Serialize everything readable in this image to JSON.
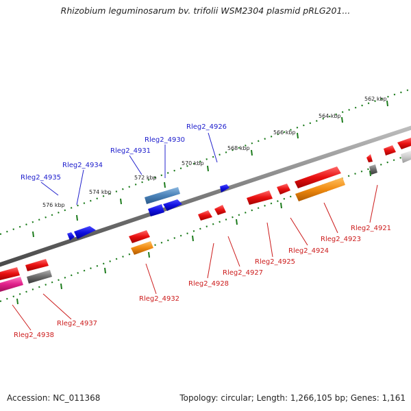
{
  "title": "Rhizobium leguminosarum bv. trifolii WSM2304 plasmid pRLG201...",
  "footer": {
    "accession": "Accession: NC_011368",
    "summary": "Topology: circular; Length: 1,266,105 bp; Genes: 1,161"
  },
  "kbp_labels": [
    "562 kbp",
    "564 kbp",
    "566 kbp",
    "568 kbp",
    "570 kbp",
    "572 kbp",
    "574 kbp",
    "576 kbp"
  ],
  "top_gene_labels": [
    "Rleg2_4926",
    "Rleg2_4930",
    "Rleg2_4931",
    "Rleg2_4934",
    "Rleg2_4935"
  ],
  "bottom_gene_labels": [
    "Rleg2_4921",
    "Rleg2_4923",
    "Rleg2_4924",
    "Rleg2_4925",
    "Rleg2_4927",
    "Rleg2_4928",
    "Rleg2_4932",
    "Rleg2_4937",
    "Rleg2_4938"
  ],
  "colors": {
    "forward_gene": "#1010e0",
    "forward_gene_alt": "#4a82b8",
    "reverse_gene": "#e81010",
    "reverse_gene_alt": "#f08a10",
    "pseudo_gene": "#777777",
    "rna_gene": "#e0208a",
    "tick": "#1a7a1a",
    "backbone": "#8a8a8a"
  }
}
